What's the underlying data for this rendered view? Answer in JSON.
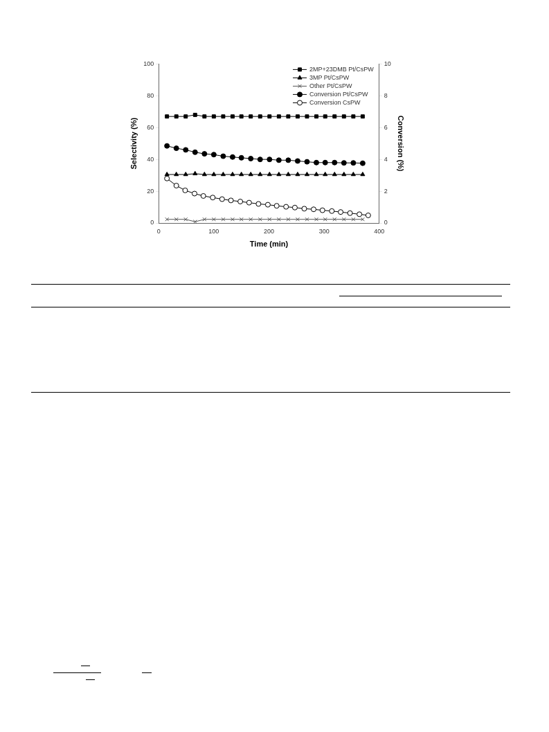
{
  "chart_data": {
    "type": "line",
    "xlabel": "Time (min)",
    "ylabel": "Selectivity (%)",
    "y2label": "Conversion (%)",
    "xlim": [
      0,
      400
    ],
    "xticks": [
      0,
      100,
      200,
      300,
      400
    ],
    "ylim": [
      0,
      100
    ],
    "yticks": [
      0,
      20,
      40,
      60,
      80,
      100
    ],
    "y2lim": [
      0,
      10
    ],
    "y2ticks": [
      0,
      2,
      4,
      6,
      8,
      10
    ],
    "grid": false,
    "legend": "top right",
    "line_style": "solid",
    "x": [
      15,
      32,
      49,
      66,
      83,
      100,
      117,
      134,
      150,
      167,
      184,
      201,
      218,
      235,
      252,
      269,
      286,
      302,
      319,
      336,
      353,
      370
    ],
    "series": [
      {
        "name": "2MP+23DMB Pt/CsPW",
        "color": "#000000",
        "marker": "square",
        "values": [
          67,
          67,
          67,
          68,
          67,
          67,
          67,
          67,
          67,
          67,
          67,
          67,
          67,
          67,
          67,
          67,
          67,
          67,
          67,
          67,
          67,
          67
        ]
      },
      {
        "name": "3MP Pt/CsPW",
        "color": "#000000",
        "marker": "triangle",
        "values": [
          30.5,
          30.5,
          30.5,
          31,
          30.5,
          30.5,
          30.5,
          30.5,
          30.5,
          30.5,
          30.5,
          30.5,
          30.5,
          30.5,
          30.5,
          30.5,
          30.5,
          30.5,
          30.5,
          30.5,
          30.5,
          30.5
        ]
      },
      {
        "name": "Other Pt/CsPW",
        "color": "#555555",
        "marker": "cross",
        "values": [
          2.3,
          2.3,
          2.3,
          0.8,
          2.3,
          2.3,
          2.3,
          2.3,
          2.3,
          2.3,
          2.3,
          2.3,
          2.3,
          2.3,
          2.3,
          2.3,
          2.3,
          2.3,
          2.3,
          2.3,
          2.3,
          2.3
        ]
      },
      {
        "name": "Conversion Pt/CsPW",
        "color": "#000000",
        "marker": "circle",
        "axis": "y2",
        "values": [
          4.85,
          4.7,
          4.6,
          4.45,
          4.35,
          4.3,
          4.2,
          4.15,
          4.1,
          4.05,
          4.0,
          4.0,
          3.95,
          3.95,
          3.9,
          3.85,
          3.8,
          3.8,
          3.8,
          3.78,
          3.78,
          3.76
        ]
      },
      {
        "name": "Conversion CsPW",
        "color": "#000000",
        "marker": "circle",
        "colors": [
          "#ffffff",
          "#ffffff",
          "#ffffff",
          "#ffffff",
          "#ffffff",
          "#ffffff",
          "#ffffff",
          "#ffffff",
          "#ffffff",
          "#ffffff",
          "#ffffff",
          "#ffffff",
          "#ffffff",
          "#ffffff",
          "#ffffff",
          "#ffffff",
          "#ffffff",
          "#ffffff",
          "#ffffff",
          "#ffffff",
          "#ffffff",
          "#ffffff",
          "#ffffff"
        ],
        "axis": "y2",
        "x": [
          15,
          32,
          48,
          65,
          81,
          98,
          115,
          131,
          148,
          164,
          181,
          198,
          214,
          231,
          247,
          264,
          281,
          297,
          314,
          330,
          347,
          364,
          380
        ],
        "values": [
          2.8,
          2.35,
          2.05,
          1.85,
          1.7,
          1.6,
          1.5,
          1.42,
          1.35,
          1.28,
          1.2,
          1.15,
          1.08,
          1.02,
          0.97,
          0.9,
          0.86,
          0.8,
          0.75,
          0.69,
          0.62,
          0.55,
          0.48
        ]
      }
    ]
  }
}
